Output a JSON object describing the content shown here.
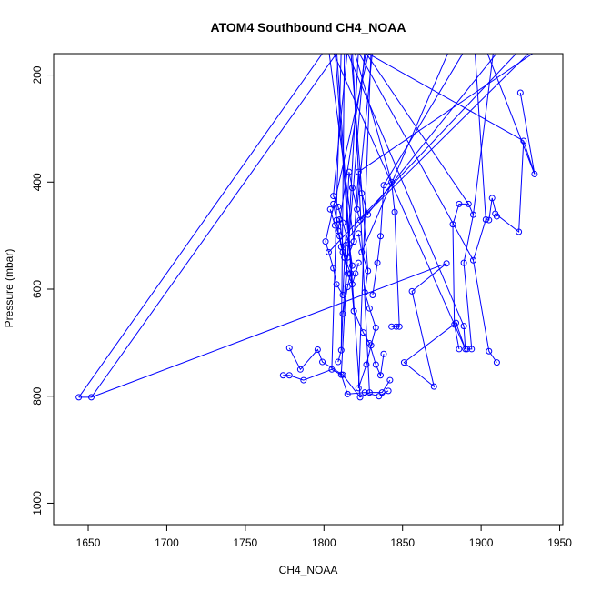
{
  "chart_data": {
    "type": "line",
    "title": "ATOM4 Southbound CH4_NOAA",
    "xlabel": "CH4_NOAA",
    "ylabel": "Pressure (mbar)",
    "xlim": [
      1628,
      1952
    ],
    "ylim": [
      1040,
      160
    ],
    "x_ticks": [
      1650,
      1700,
      1750,
      1800,
      1850,
      1900,
      1950
    ],
    "y_ticks": [
      200,
      400,
      600,
      800,
      1000
    ],
    "color": "#0000ff",
    "marker": "open-circle",
    "series": [
      {
        "points": [
          [
            1644,
            802
          ],
          [
            1652,
            802
          ],
          [
            1878,
            552
          ],
          [
            1856,
            604
          ],
          [
            1870,
            782
          ],
          [
            1851,
            737
          ],
          [
            1884,
            663
          ],
          [
            1890,
            712
          ],
          [
            1889,
            669
          ]
        ]
      },
      {
        "points": [
          [
            1778,
            710
          ],
          [
            1785,
            750
          ],
          [
            1796,
            713
          ],
          [
            1799,
            736
          ],
          [
            1812,
            760
          ],
          [
            1823,
            802
          ],
          [
            1829,
            793
          ],
          [
            1837,
            793
          ],
          [
            1842,
            770
          ]
        ]
      },
      {
        "points": [
          [
            1774,
            761
          ],
          [
            1778,
            761
          ],
          [
            1787,
            770
          ],
          [
            1805,
            750
          ],
          [
            1811,
            760
          ],
          [
            1815,
            796
          ],
          [
            1826,
            793
          ],
          [
            1835,
            800
          ],
          [
            1841,
            790
          ]
        ]
      },
      {
        "points": [
          [
            1809,
            736
          ],
          [
            1811,
            714
          ],
          [
            1812,
            646
          ],
          [
            1815,
            596
          ],
          [
            1818,
            556
          ],
          [
            1816,
            516
          ],
          [
            1812,
            476
          ],
          [
            1809,
            446
          ],
          [
            1806,
            426
          ]
        ]
      },
      {
        "points": [
          [
            1822,
            785
          ],
          [
            1827,
            741
          ],
          [
            1830,
            705
          ],
          [
            1833,
            672
          ],
          [
            1829,
            636
          ],
          [
            1826,
            606
          ],
          [
            1828,
            566
          ],
          [
            1824,
            531
          ],
          [
            1822,
            496
          ]
        ]
      },
      {
        "points": [
          [
            1843,
            670
          ],
          [
            1846,
            670
          ],
          [
            1848,
            670
          ],
          [
            1845,
            456
          ],
          [
            1843,
            400
          ],
          [
            1838,
            406
          ],
          [
            1836,
            501
          ],
          [
            1834,
            551
          ],
          [
            1831,
            611
          ]
        ]
      },
      {
        "points": [
          [
            1910,
            737
          ],
          [
            1905,
            716
          ],
          [
            1895,
            546
          ],
          [
            1903,
            470
          ],
          [
            1905,
            471
          ],
          [
            1907,
            430
          ],
          [
            1910,
            464
          ],
          [
            1909,
            459
          ],
          [
            1924,
            493
          ],
          [
            1927,
            323
          ],
          [
            1934,
            385
          ],
          [
            1925,
            233
          ]
        ]
      },
      {
        "points": [
          [
            1886,
            712
          ],
          [
            1883,
            666
          ],
          [
            1882,
            479
          ],
          [
            1886,
            441
          ],
          [
            1892,
            441
          ],
          [
            1895,
            461
          ],
          [
            1889,
            551
          ],
          [
            1894,
            712
          ],
          [
            1891,
            712
          ]
        ]
      },
      {
        "points": [
          [
            1806,
            441
          ],
          [
            1808,
            471
          ],
          [
            1809,
            491
          ],
          [
            1811,
            521
          ],
          [
            1813,
            541
          ],
          [
            1815,
            571
          ],
          [
            1818,
            591
          ],
          [
            1820,
            571
          ],
          [
            1822,
            551
          ]
        ]
      },
      {
        "points": [
          [
            1801,
            511
          ],
          [
            1803,
            531
          ],
          [
            1806,
            561
          ],
          [
            1808,
            591
          ],
          [
            1812,
            611
          ],
          [
            1816,
            381
          ],
          [
            1818,
            411
          ],
          [
            1821,
            451
          ],
          [
            1823,
            471
          ]
        ]
      },
      {
        "points": [
          [
            1804,
            451
          ],
          [
            1807,
            481
          ],
          [
            1810,
            501
          ],
          [
            1812,
            531
          ],
          [
            1815,
            541
          ],
          [
            1819,
            511
          ],
          [
            1822,
            381
          ],
          [
            1824,
            421
          ],
          [
            1828,
            461
          ]
        ]
      },
      {
        "points": [
          [
            1810,
            470
          ],
          [
            1813,
            541
          ],
          [
            1817,
            571
          ],
          [
            1819,
            641
          ],
          [
            1825,
            681
          ],
          [
            1829,
            701
          ],
          [
            1833,
            741
          ],
          [
            1836,
            761
          ],
          [
            1838,
            721
          ]
        ]
      }
    ],
    "top_ends": [
      1801,
      1805,
      1808,
      1811,
      1813,
      1815,
      1817,
      1819,
      1821,
      1823,
      1825,
      1827,
      1829,
      1831,
      1803,
      1807,
      1810,
      1814,
      1818,
      1822,
      1826,
      1830,
      1880,
      1890,
      1896,
      1903,
      1908,
      1912,
      1925,
      1933,
      1937
    ]
  }
}
